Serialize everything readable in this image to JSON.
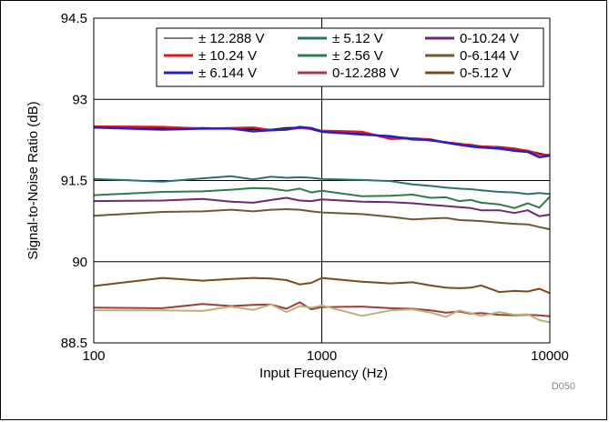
{
  "chart_data": {
    "type": "line",
    "xlabel": "Input Frequency (Hz)",
    "ylabel": "Signal-to-Noise Ratio (dB)",
    "x_scale": "log",
    "xlim": [
      100,
      10000
    ],
    "ylim": [
      88.5,
      94.5
    ],
    "x_ticks": [
      100,
      1000,
      10000
    ],
    "x_tick_labels": [
      "100",
      "1000",
      "10000"
    ],
    "y_ticks": [
      88.5,
      90,
      91.5,
      93,
      94.5
    ],
    "y_tick_labels": [
      "88.5",
      "90",
      "91.5",
      "93",
      "94.5"
    ],
    "grid": true,
    "legend_position": "top-right",
    "footnote": "D050",
    "x": [
      100,
      200,
      300,
      400,
      500,
      600,
      700,
      800,
      900,
      1000,
      1500,
      2000,
      2500,
      3000,
      3500,
      4000,
      4500,
      5000,
      6000,
      7000,
      8000,
      9000,
      10000
    ],
    "series": [
      {
        "name": "± 12.288 V",
        "color": "#000000",
        "values": [
          92.48,
          92.46,
          92.47,
          92.46,
          92.45,
          92.44,
          92.47,
          92.48,
          92.45,
          92.4,
          92.36,
          92.31,
          92.28,
          92.24,
          92.21,
          92.17,
          92.16,
          92.13,
          92.12,
          92.09,
          92.05,
          92.0,
          91.96
        ]
      },
      {
        "name": "± 10.24 V",
        "color": "#e8141c",
        "values": [
          92.5,
          92.49,
          92.46,
          92.47,
          92.48,
          92.43,
          92.45,
          92.47,
          92.46,
          92.42,
          92.4,
          92.27,
          92.28,
          92.26,
          92.2,
          92.18,
          92.15,
          92.13,
          92.11,
          92.08,
          92.05,
          91.98,
          91.97
        ]
      },
      {
        "name": "± 6.144 V",
        "color": "#1f1fd6",
        "values": [
          92.48,
          92.44,
          92.46,
          92.46,
          92.41,
          92.43,
          92.44,
          92.49,
          92.47,
          92.4,
          92.35,
          92.32,
          92.26,
          92.25,
          92.2,
          92.16,
          92.13,
          92.11,
          92.09,
          92.05,
          92.03,
          91.93,
          91.96
        ]
      },
      {
        "name": "± 5.12 V",
        "color": "#2f6f6f",
        "values": [
          91.53,
          91.48,
          91.54,
          91.58,
          91.52,
          91.57,
          91.55,
          91.56,
          91.55,
          91.53,
          91.51,
          91.49,
          91.43,
          91.4,
          91.37,
          91.35,
          91.34,
          91.32,
          91.29,
          91.28,
          91.25,
          91.27,
          91.25
        ]
      },
      {
        "name": "± 2.56 V",
        "color": "#2f7a4a",
        "values": [
          91.23,
          91.29,
          91.3,
          91.33,
          91.36,
          91.35,
          91.31,
          91.35,
          91.28,
          91.31,
          91.21,
          91.22,
          91.24,
          91.18,
          91.19,
          91.12,
          91.14,
          91.09,
          91.06,
          90.99,
          91.08,
          91.0,
          91.2
        ]
      },
      {
        "name": "0-12.288 V",
        "color": "#a33a3a",
        "values": [
          89.15,
          89.14,
          89.22,
          89.18,
          89.2,
          89.21,
          89.13,
          89.25,
          89.12,
          89.16,
          89.17,
          89.14,
          89.13,
          89.1,
          89.06,
          89.08,
          89.04,
          89.05,
          89.02,
          89.01,
          89.02,
          89.01,
          88.99
        ]
      },
      {
        "name": "0-10.24 V",
        "color": "#6b2a6b",
        "values": [
          91.12,
          91.13,
          91.16,
          91.11,
          91.09,
          91.14,
          91.18,
          91.13,
          91.12,
          91.15,
          91.11,
          91.1,
          91.08,
          91.05,
          91.03,
          91.01,
          90.99,
          90.95,
          90.95,
          90.9,
          90.95,
          90.84,
          90.87
        ]
      },
      {
        "name": "0-6.144 V",
        "color": "#6b5a32",
        "values": [
          90.85,
          90.92,
          90.93,
          90.96,
          90.93,
          90.96,
          90.97,
          90.96,
          90.93,
          90.91,
          90.88,
          90.83,
          90.78,
          90.8,
          90.81,
          90.77,
          90.76,
          90.75,
          90.72,
          90.7,
          90.69,
          90.64,
          90.6
        ]
      },
      {
        "name": "0-5.12 V",
        "color": "#7a4a1e",
        "values": [
          89.55,
          89.7,
          89.65,
          89.68,
          89.7,
          89.69,
          89.66,
          89.58,
          89.61,
          89.7,
          89.63,
          89.6,
          89.62,
          89.56,
          89.52,
          89.51,
          89.52,
          89.56,
          89.44,
          89.46,
          89.45,
          89.5,
          89.42
        ]
      },
      {
        "name": "",
        "color": "#b8b27a",
        "values": [
          89.1,
          89.1,
          89.09,
          89.17,
          89.11,
          89.21,
          89.07,
          89.18,
          89.15,
          89.19,
          89.0,
          89.1,
          89.12,
          89.06,
          88.98,
          89.1,
          89.05,
          89.0,
          89.07,
          89.02,
          89.03,
          88.92,
          88.88
        ]
      }
    ]
  }
}
